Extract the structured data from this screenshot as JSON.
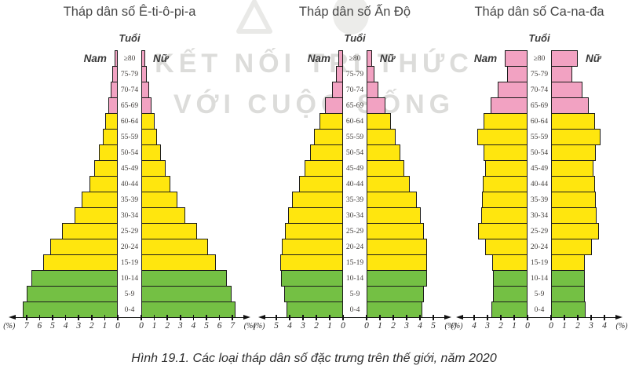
{
  "figure": {
    "caption": "Hình 19.1. Các loại tháp dân số đặc trưng trên thế giới, năm 2020",
    "watermark": {
      "line1": "KẾT NỐI TRI THỨC",
      "line2": "VỚI CUỘC SỐNG"
    },
    "labels": {
      "age_axis_title": "Tuổi",
      "male": "Nam",
      "female": "Nữ",
      "percent_unit": "(%)"
    },
    "colors": {
      "young": "#74c044",
      "working": "#ffe60e",
      "elderly": "#f2a2c2",
      "bar_border": "#1c1c1c",
      "axis": "#111111",
      "watermark": "#dcdcda"
    }
  },
  "age_color_bands": {
    "elderly_groups": [
      "≥80",
      "75-79",
      "70-74",
      "65-69"
    ],
    "working_groups": [
      "60-64",
      "55-59",
      "50-54",
      "45-49",
      "40-44",
      "35-39",
      "30-34",
      "25-29",
      "20-24",
      "15-19"
    ],
    "young_groups": [
      "10-14",
      "5-9",
      "0-4"
    ]
  },
  "chart_data": [
    {
      "type": "bar",
      "subtype": "population-pyramid",
      "title": "Tháp dân số Ê-ti-ô-pi-a",
      "unit": "%",
      "order": "top-to-bottom",
      "axis_max_percent": 7,
      "axis_ticks": [
        0,
        1,
        2,
        3,
        4,
        5,
        6,
        7
      ],
      "age_groups": [
        "≥80",
        "75-79",
        "70-74",
        "65-69",
        "60-64",
        "55-59",
        "50-54",
        "45-49",
        "40-44",
        "35-39",
        "30-34",
        "25-29",
        "20-24",
        "15-19",
        "10-14",
        "5-9",
        "0-4"
      ],
      "series": [
        {
          "name": "Nam",
          "values": [
            0.25,
            0.4,
            0.55,
            0.75,
            0.95,
            1.15,
            1.45,
            1.8,
            2.15,
            2.75,
            3.3,
            4.3,
            5.2,
            5.75,
            6.6,
            7.0,
            7.3
          ]
        },
        {
          "name": "Nữ",
          "values": [
            0.3,
            0.45,
            0.6,
            0.8,
            1.0,
            1.2,
            1.5,
            1.85,
            2.2,
            2.8,
            3.35,
            4.3,
            5.15,
            5.7,
            6.55,
            6.95,
            7.25
          ]
        }
      ]
    },
    {
      "type": "bar",
      "subtype": "population-pyramid",
      "title": "Tháp dân số Ấn Độ",
      "unit": "%",
      "order": "top-to-bottom",
      "axis_max_percent": 5,
      "axis_ticks": [
        0,
        1,
        2,
        3,
        4,
        5
      ],
      "age_groups": [
        "≥80",
        "75-79",
        "70-74",
        "65-69",
        "60-64",
        "55-59",
        "50-54",
        "45-49",
        "40-44",
        "35-39",
        "30-34",
        "25-29",
        "20-24",
        "15-19",
        "10-14",
        "5-9",
        "0-4"
      ],
      "series": [
        {
          "name": "Nam",
          "values": [
            0.35,
            0.55,
            0.85,
            1.35,
            1.75,
            2.2,
            2.5,
            2.9,
            3.3,
            3.8,
            4.1,
            4.35,
            4.6,
            4.7,
            4.65,
            4.4,
            4.25
          ]
        },
        {
          "name": "Nữ",
          "values": [
            0.4,
            0.6,
            0.9,
            1.4,
            1.8,
            2.2,
            2.5,
            2.85,
            3.25,
            3.75,
            4.05,
            4.3,
            4.5,
            4.55,
            4.5,
            4.3,
            4.15
          ]
        }
      ]
    },
    {
      "type": "bar",
      "subtype": "population-pyramid",
      "title": "Tháp dân số Ca-na-đa",
      "unit": "%",
      "order": "top-to-bottom",
      "axis_max_percent": 4,
      "axis_ticks": [
        0,
        1,
        2,
        3,
        4
      ],
      "age_groups": [
        "≥80",
        "75-79",
        "70-74",
        "65-69",
        "60-64",
        "55-59",
        "50-54",
        "45-49",
        "40-44",
        "35-39",
        "30-34",
        "25-29",
        "20-24",
        "15-19",
        "10-14",
        "5-9",
        "0-4"
      ],
      "series": [
        {
          "name": "Nam",
          "values": [
            1.7,
            1.55,
            2.25,
            2.75,
            3.3,
            3.75,
            3.3,
            3.2,
            3.35,
            3.4,
            3.45,
            3.7,
            3.15,
            2.65,
            2.6,
            2.6,
            2.7
          ]
        },
        {
          "name": "Nữ",
          "values": [
            2.0,
            1.6,
            2.35,
            2.8,
            3.3,
            3.7,
            3.35,
            3.2,
            3.3,
            3.35,
            3.4,
            3.6,
            3.05,
            2.55,
            2.5,
            2.5,
            2.6
          ]
        }
      ]
    }
  ]
}
